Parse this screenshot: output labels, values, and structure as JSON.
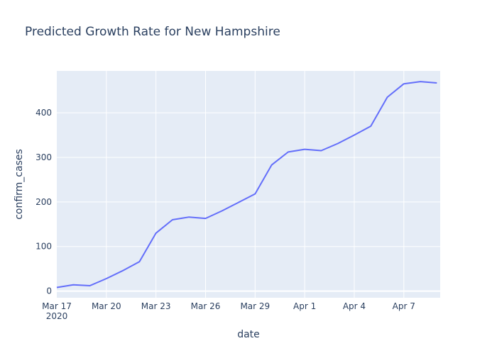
{
  "chart_data": {
    "type": "line",
    "title": "Predicted Growth Rate for New Hampshire",
    "xlabel": "date",
    "ylabel": "confirm_cases",
    "x_tick_labels": [
      "Mar 17",
      "Mar 20",
      "Mar 23",
      "Mar 26",
      "Mar 29",
      "Apr 1",
      "Apr 4",
      "Apr 7"
    ],
    "x_tick_sublabel": "2020",
    "y_ticks": [
      0,
      100,
      200,
      300,
      400
    ],
    "xlim": [
      0,
      23.2
    ],
    "ylim": [
      -15,
      494
    ],
    "grid": true,
    "colors": {
      "line": "#636efa",
      "plot_bg": "#e5ecf6",
      "grid": "#ffffff",
      "text": "#2a3f5f"
    },
    "series": [
      {
        "name": "confirm_cases",
        "x_day_offset": [
          0,
          1,
          2,
          3,
          4,
          5,
          6,
          7,
          8,
          9,
          10,
          11,
          12,
          13,
          14,
          15,
          16,
          17,
          18,
          19,
          20,
          21,
          22,
          23
        ],
        "dates": [
          "2020-03-17",
          "2020-03-18",
          "2020-03-19",
          "2020-03-20",
          "2020-03-21",
          "2020-03-22",
          "2020-03-23",
          "2020-03-24",
          "2020-03-25",
          "2020-03-26",
          "2020-03-27",
          "2020-03-28",
          "2020-03-29",
          "2020-03-30",
          "2020-03-31",
          "2020-04-01",
          "2020-04-02",
          "2020-04-03",
          "2020-04-04",
          "2020-04-05",
          "2020-04-06",
          "2020-04-07",
          "2020-04-08",
          "2020-04-09"
        ],
        "values": [
          8,
          14,
          12,
          28,
          46,
          66,
          130,
          160,
          166,
          163,
          180,
          199,
          218,
          283,
          312,
          318,
          315,
          331,
          350,
          370,
          435,
          465,
          470,
          467
        ]
      }
    ]
  }
}
